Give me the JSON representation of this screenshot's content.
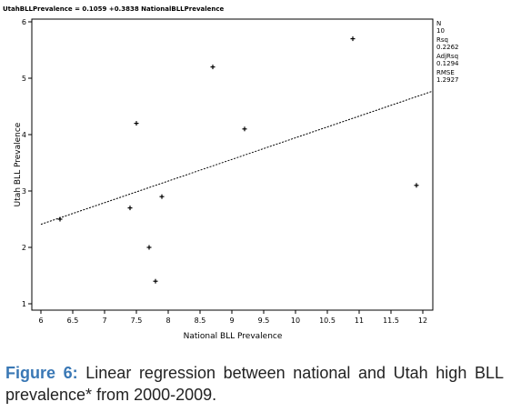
{
  "chart_data": {
    "type": "scatter",
    "title": "UtahBLLPrevalence = 0.1059 +0.3838 NationalBLLPrevalence",
    "xlabel": "National BLL Prevalence",
    "ylabel": "Utah BLL Prevalence",
    "xlim": [
      6,
      12
    ],
    "ylim": [
      1,
      6
    ],
    "xticks": [
      "6",
      "6.5",
      "7",
      "7.5",
      "8",
      "8.5",
      "9",
      "9.5",
      "10",
      "10.5",
      "11",
      "11.5",
      "12"
    ],
    "yticks": [
      "1",
      "2",
      "3",
      "4",
      "5",
      "6"
    ],
    "points": [
      {
        "x": 6.3,
        "y": 2.5
      },
      {
        "x": 7.4,
        "y": 2.7
      },
      {
        "x": 7.5,
        "y": 4.2
      },
      {
        "x": 7.7,
        "y": 2.0
      },
      {
        "x": 7.8,
        "y": 1.4
      },
      {
        "x": 7.9,
        "y": 2.9
      },
      {
        "x": 8.7,
        "y": 5.2
      },
      {
        "x": 9.2,
        "y": 4.1
      },
      {
        "x": 10.9,
        "y": 5.7
      },
      {
        "x": 11.9,
        "y": 3.1
      }
    ],
    "regression": {
      "intercept": 0.1059,
      "slope": 0.3838
    },
    "stats": [
      {
        "label": "N",
        "value": "10"
      },
      {
        "label": "Rsq",
        "value": "0.2262"
      },
      {
        "label": "AdjRsq",
        "value": "0.1294"
      },
      {
        "label": "RMSE",
        "value": "1.2927"
      }
    ],
    "grid": false
  },
  "caption": {
    "label": "Figure 6:",
    "text": " Linear regression between national and Utah high BLL prevalence* from 2000-2009."
  }
}
